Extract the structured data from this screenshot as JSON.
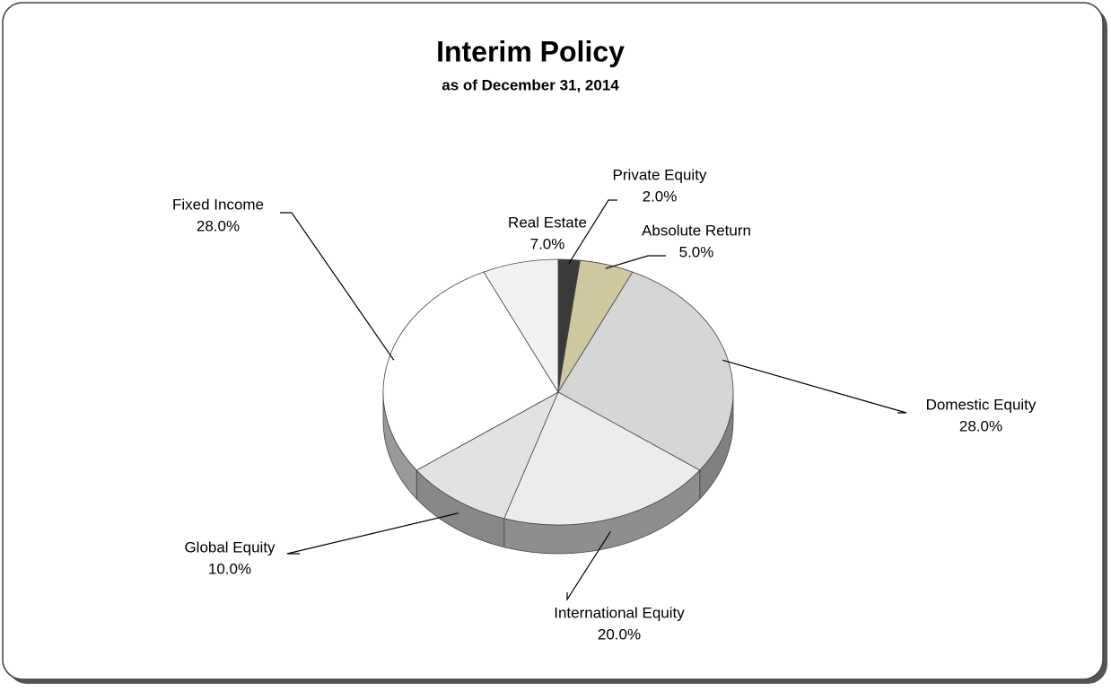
{
  "chart_data": {
    "type": "pie3d",
    "title": "Interim Policy",
    "subtitle": "as of December 31, 2014",
    "categories": [
      "Private Equity",
      "Absolute Return",
      "Domestic Equity",
      "International Equity",
      "Global Equity",
      "Fixed Income",
      "Real Estate"
    ],
    "values": [
      2,
      5,
      28,
      20,
      10,
      28,
      7
    ],
    "value_labels": [
      "2.0%",
      "5.0%",
      "28.0%",
      "20.0%",
      "10.0%",
      "28.0%",
      "7.0%"
    ],
    "colors": [
      "#3a3a3a",
      "#cfc7a0",
      "#d6d6d6",
      "#ececec",
      "#e2e2e2",
      "#ffffff",
      "#f2f2f2"
    ]
  }
}
